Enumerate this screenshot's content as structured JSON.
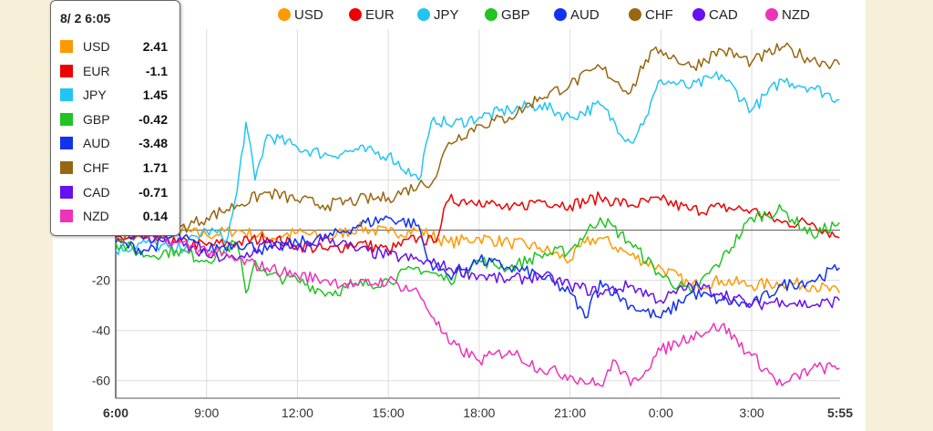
{
  "tooltip": {
    "time": "8/ 2 6:05",
    "rows": [
      {
        "name": "USD",
        "value": "2.41",
        "color": "#ff9900"
      },
      {
        "name": "EUR",
        "value": "-1.1",
        "color": "#ee0000"
      },
      {
        "name": "JPY",
        "value": "1.45",
        "color": "#22c4f4"
      },
      {
        "name": "GBP",
        "value": "-0.42",
        "color": "#22c422"
      },
      {
        "name": "AUD",
        "value": "-3.48",
        "color": "#1133ee"
      },
      {
        "name": "CHF",
        "value": "1.71",
        "color": "#996611"
      },
      {
        "name": "CAD",
        "value": "-0.71",
        "color": "#6611ee"
      },
      {
        "name": "NZD",
        "value": "0.14",
        "color": "#ee33bb"
      }
    ]
  },
  "chart_data": {
    "type": "line",
    "title": "",
    "xlabel": "",
    "ylabel": "",
    "ylim": [
      -67,
      78
    ],
    "y_ticks": [
      -60,
      -40,
      -20,
      20
    ],
    "x_range_hours": [
      6.0,
      29.9167
    ],
    "x_ticks": [
      "6:00",
      "9:00",
      "12:00",
      "15:00",
      "18:00",
      "21:00",
      "0:00",
      "3:00",
      "5:55"
    ],
    "grid": true,
    "legend_position": "top",
    "series": [
      {
        "name": "USD",
        "color": "#ff9900",
        "points": [
          [
            6,
            0
          ],
          [
            7,
            1
          ],
          [
            8,
            0
          ],
          [
            9,
            -2
          ],
          [
            10,
            0
          ],
          [
            11,
            -3
          ],
          [
            12,
            -1
          ],
          [
            13,
            -3
          ],
          [
            14,
            1
          ],
          [
            15,
            -1
          ],
          [
            16,
            0
          ],
          [
            17,
            -5
          ],
          [
            18,
            -3
          ],
          [
            19,
            -5
          ],
          [
            20,
            -7
          ],
          [
            21,
            -12
          ],
          [
            21.5,
            -5
          ],
          [
            22,
            -3
          ],
          [
            23,
            -10
          ],
          [
            24,
            -15
          ],
          [
            25,
            -22
          ],
          [
            26,
            -20
          ],
          [
            27,
            -22
          ],
          [
            28,
            -21
          ],
          [
            29,
            -22
          ],
          [
            29.9,
            -25
          ]
        ]
      },
      {
        "name": "EUR",
        "color": "#ee0000",
        "points": [
          [
            6,
            -3
          ],
          [
            7,
            -3
          ],
          [
            8,
            -5
          ],
          [
            9,
            -6
          ],
          [
            10,
            -5
          ],
          [
            11,
            -3
          ],
          [
            12,
            -6
          ],
          [
            13,
            -8
          ],
          [
            14,
            -5
          ],
          [
            15,
            -8
          ],
          [
            16,
            -3
          ],
          [
            16.5,
            -5
          ],
          [
            17,
            12
          ],
          [
            18,
            12
          ],
          [
            19,
            8
          ],
          [
            20,
            12
          ],
          [
            21,
            10
          ],
          [
            22,
            13
          ],
          [
            23,
            10
          ],
          [
            24,
            12
          ],
          [
            25,
            8
          ],
          [
            26,
            9
          ],
          [
            27,
            8
          ],
          [
            28,
            3
          ],
          [
            29,
            3
          ],
          [
            29.9,
            -3
          ]
        ]
      },
      {
        "name": "JPY",
        "color": "#22c4f4",
        "points": [
          [
            6,
            -8
          ],
          [
            7,
            -5
          ],
          [
            8,
            -8
          ],
          [
            9,
            0
          ],
          [
            9.7,
            -3
          ],
          [
            10,
            15
          ],
          [
            10.3,
            43
          ],
          [
            10.6,
            20
          ],
          [
            11,
            38
          ],
          [
            12,
            33
          ],
          [
            13,
            30
          ],
          [
            14,
            32
          ],
          [
            15,
            30
          ],
          [
            16,
            20
          ],
          [
            16.5,
            45
          ],
          [
            17,
            42
          ],
          [
            18,
            45
          ],
          [
            19,
            48
          ],
          [
            20,
            50
          ],
          [
            21,
            45
          ],
          [
            22,
            50
          ],
          [
            23,
            35
          ],
          [
            23.5,
            45
          ],
          [
            24,
            60
          ],
          [
            25,
            57
          ],
          [
            26,
            62
          ],
          [
            27,
            48
          ],
          [
            28,
            60
          ],
          [
            29,
            57
          ],
          [
            29.9,
            52
          ]
        ]
      },
      {
        "name": "GBP",
        "color": "#22c422",
        "points": [
          [
            6,
            -5
          ],
          [
            7,
            -10
          ],
          [
            8,
            -8
          ],
          [
            9,
            -12
          ],
          [
            10,
            -5
          ],
          [
            10.3,
            -25
          ],
          [
            10.6,
            -12
          ],
          [
            11,
            -18
          ],
          [
            12,
            -20
          ],
          [
            13,
            -25
          ],
          [
            14,
            -22
          ],
          [
            15,
            -20
          ],
          [
            16,
            -15
          ],
          [
            17,
            -20
          ],
          [
            18,
            -12
          ],
          [
            19,
            -15
          ],
          [
            20,
            -10
          ],
          [
            21,
            -8
          ],
          [
            22,
            5
          ],
          [
            23,
            -5
          ],
          [
            24,
            -18
          ],
          [
            25,
            -25
          ],
          [
            26,
            -12
          ],
          [
            27,
            5
          ],
          [
            28,
            8
          ],
          [
            29,
            -2
          ],
          [
            29.9,
            3
          ]
        ]
      },
      {
        "name": "AUD",
        "color": "#1133ee",
        "points": [
          [
            6,
            -5
          ],
          [
            7,
            -8
          ],
          [
            8,
            -2
          ],
          [
            9,
            -8
          ],
          [
            10,
            -5
          ],
          [
            11,
            -8
          ],
          [
            12,
            -5
          ],
          [
            13,
            -3
          ],
          [
            14,
            2
          ],
          [
            15,
            5
          ],
          [
            16,
            2
          ],
          [
            16.3,
            -12
          ],
          [
            17,
            -18
          ],
          [
            18,
            -12
          ],
          [
            19,
            -15
          ],
          [
            20,
            -18
          ],
          [
            21,
            -25
          ],
          [
            21.5,
            -35
          ],
          [
            22,
            -20
          ],
          [
            23,
            -30
          ],
          [
            24,
            -35
          ],
          [
            25,
            -25
          ],
          [
            26,
            -28
          ],
          [
            27,
            -30
          ],
          [
            28,
            -22
          ],
          [
            29,
            -20
          ],
          [
            29.9,
            -15
          ]
        ]
      },
      {
        "name": "CHF",
        "color": "#996611",
        "points": [
          [
            6,
            -3
          ],
          [
            7,
            -2
          ],
          [
            8,
            0
          ],
          [
            9,
            5
          ],
          [
            10,
            10
          ],
          [
            11,
            15
          ],
          [
            12,
            12
          ],
          [
            13,
            10
          ],
          [
            14,
            12
          ],
          [
            15,
            13
          ],
          [
            16,
            18
          ],
          [
            16.5,
            20
          ],
          [
            17,
            35
          ],
          [
            18,
            42
          ],
          [
            19,
            45
          ],
          [
            20,
            53
          ],
          [
            21,
            58
          ],
          [
            22,
            65
          ],
          [
            23,
            55
          ],
          [
            23.5,
            68
          ],
          [
            24,
            72
          ],
          [
            25,
            65
          ],
          [
            26,
            72
          ],
          [
            27,
            67
          ],
          [
            28,
            73
          ],
          [
            29,
            68
          ],
          [
            29.9,
            66
          ]
        ]
      },
      {
        "name": "CAD",
        "color": "#6611ee",
        "points": [
          [
            6,
            0
          ],
          [
            7,
            -3
          ],
          [
            8,
            -5
          ],
          [
            9,
            -10
          ],
          [
            10,
            -12
          ],
          [
            11,
            -5
          ],
          [
            12,
            -8
          ],
          [
            13,
            -3
          ],
          [
            14,
            -8
          ],
          [
            15,
            -10
          ],
          [
            16,
            -12
          ],
          [
            17,
            -15
          ],
          [
            18,
            -18
          ],
          [
            19,
            -20
          ],
          [
            20,
            -18
          ],
          [
            21,
            -22
          ],
          [
            22,
            -25
          ],
          [
            23,
            -22
          ],
          [
            24,
            -28
          ],
          [
            25,
            -22
          ],
          [
            26,
            -25
          ],
          [
            27,
            -30
          ],
          [
            28,
            -28
          ],
          [
            29,
            -30
          ],
          [
            29.9,
            -28
          ]
        ]
      },
      {
        "name": "NZD",
        "color": "#ee33bb",
        "points": [
          [
            6,
            2
          ],
          [
            7,
            -2
          ],
          [
            8,
            -5
          ],
          [
            9,
            -8
          ],
          [
            10,
            -12
          ],
          [
            11,
            -15
          ],
          [
            12,
            -18
          ],
          [
            13,
            -20
          ],
          [
            14,
            -22
          ],
          [
            15,
            -20
          ],
          [
            16,
            -25
          ],
          [
            16.5,
            -35
          ],
          [
            17,
            -45
          ],
          [
            18,
            -52
          ],
          [
            19,
            -48
          ],
          [
            20,
            -55
          ],
          [
            21,
            -58
          ],
          [
            22,
            -62
          ],
          [
            22.5,
            -52
          ],
          [
            23,
            -62
          ],
          [
            24,
            -48
          ],
          [
            25,
            -42
          ],
          [
            26,
            -38
          ],
          [
            27,
            -50
          ],
          [
            28,
            -62
          ],
          [
            29,
            -55
          ],
          [
            29.9,
            -55
          ]
        ]
      }
    ]
  }
}
